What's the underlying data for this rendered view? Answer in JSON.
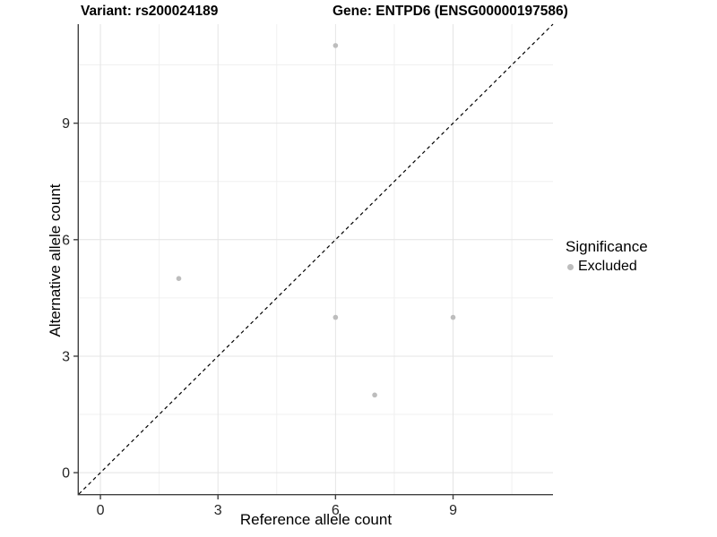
{
  "header": {
    "note": ""
  },
  "chart_data": {
    "type": "scatter",
    "titles": [
      "Variant: rs200024189",
      "Gene: ENTPD6 (ENSG00000197586)"
    ],
    "xlabel": "Reference allele count",
    "ylabel": "Alternative allele count",
    "xlim": [
      -0.55,
      11.55
    ],
    "ylim": [
      -0.55,
      11.55
    ],
    "x_ticks": [
      0,
      3,
      6,
      9
    ],
    "y_ticks": [
      0,
      3,
      6,
      9
    ],
    "minor_gridlines": [
      1.5,
      4.5,
      7.5,
      10.5
    ],
    "grid": true,
    "identity_line": {
      "type": "dashed",
      "color": "#000000",
      "slope": 1,
      "intercept": 0
    },
    "series": [
      {
        "name": "Excluded",
        "color": "#bdbdbd",
        "points": [
          [
            2,
            5
          ],
          [
            6,
            11
          ],
          [
            6,
            4
          ],
          [
            7,
            2
          ],
          [
            9,
            4
          ]
        ]
      }
    ],
    "legend_position": "right"
  },
  "legend": {
    "title": "Significance",
    "items": [
      {
        "label": "Excluded",
        "color": "#bdbdbd"
      }
    ]
  },
  "style": {
    "axis_line_color": "#404040",
    "tick_color": "#404040",
    "major_grid_color": "#e4e4e4",
    "minor_grid_color": "#f0f0f0",
    "point_radius": 2.8
  }
}
